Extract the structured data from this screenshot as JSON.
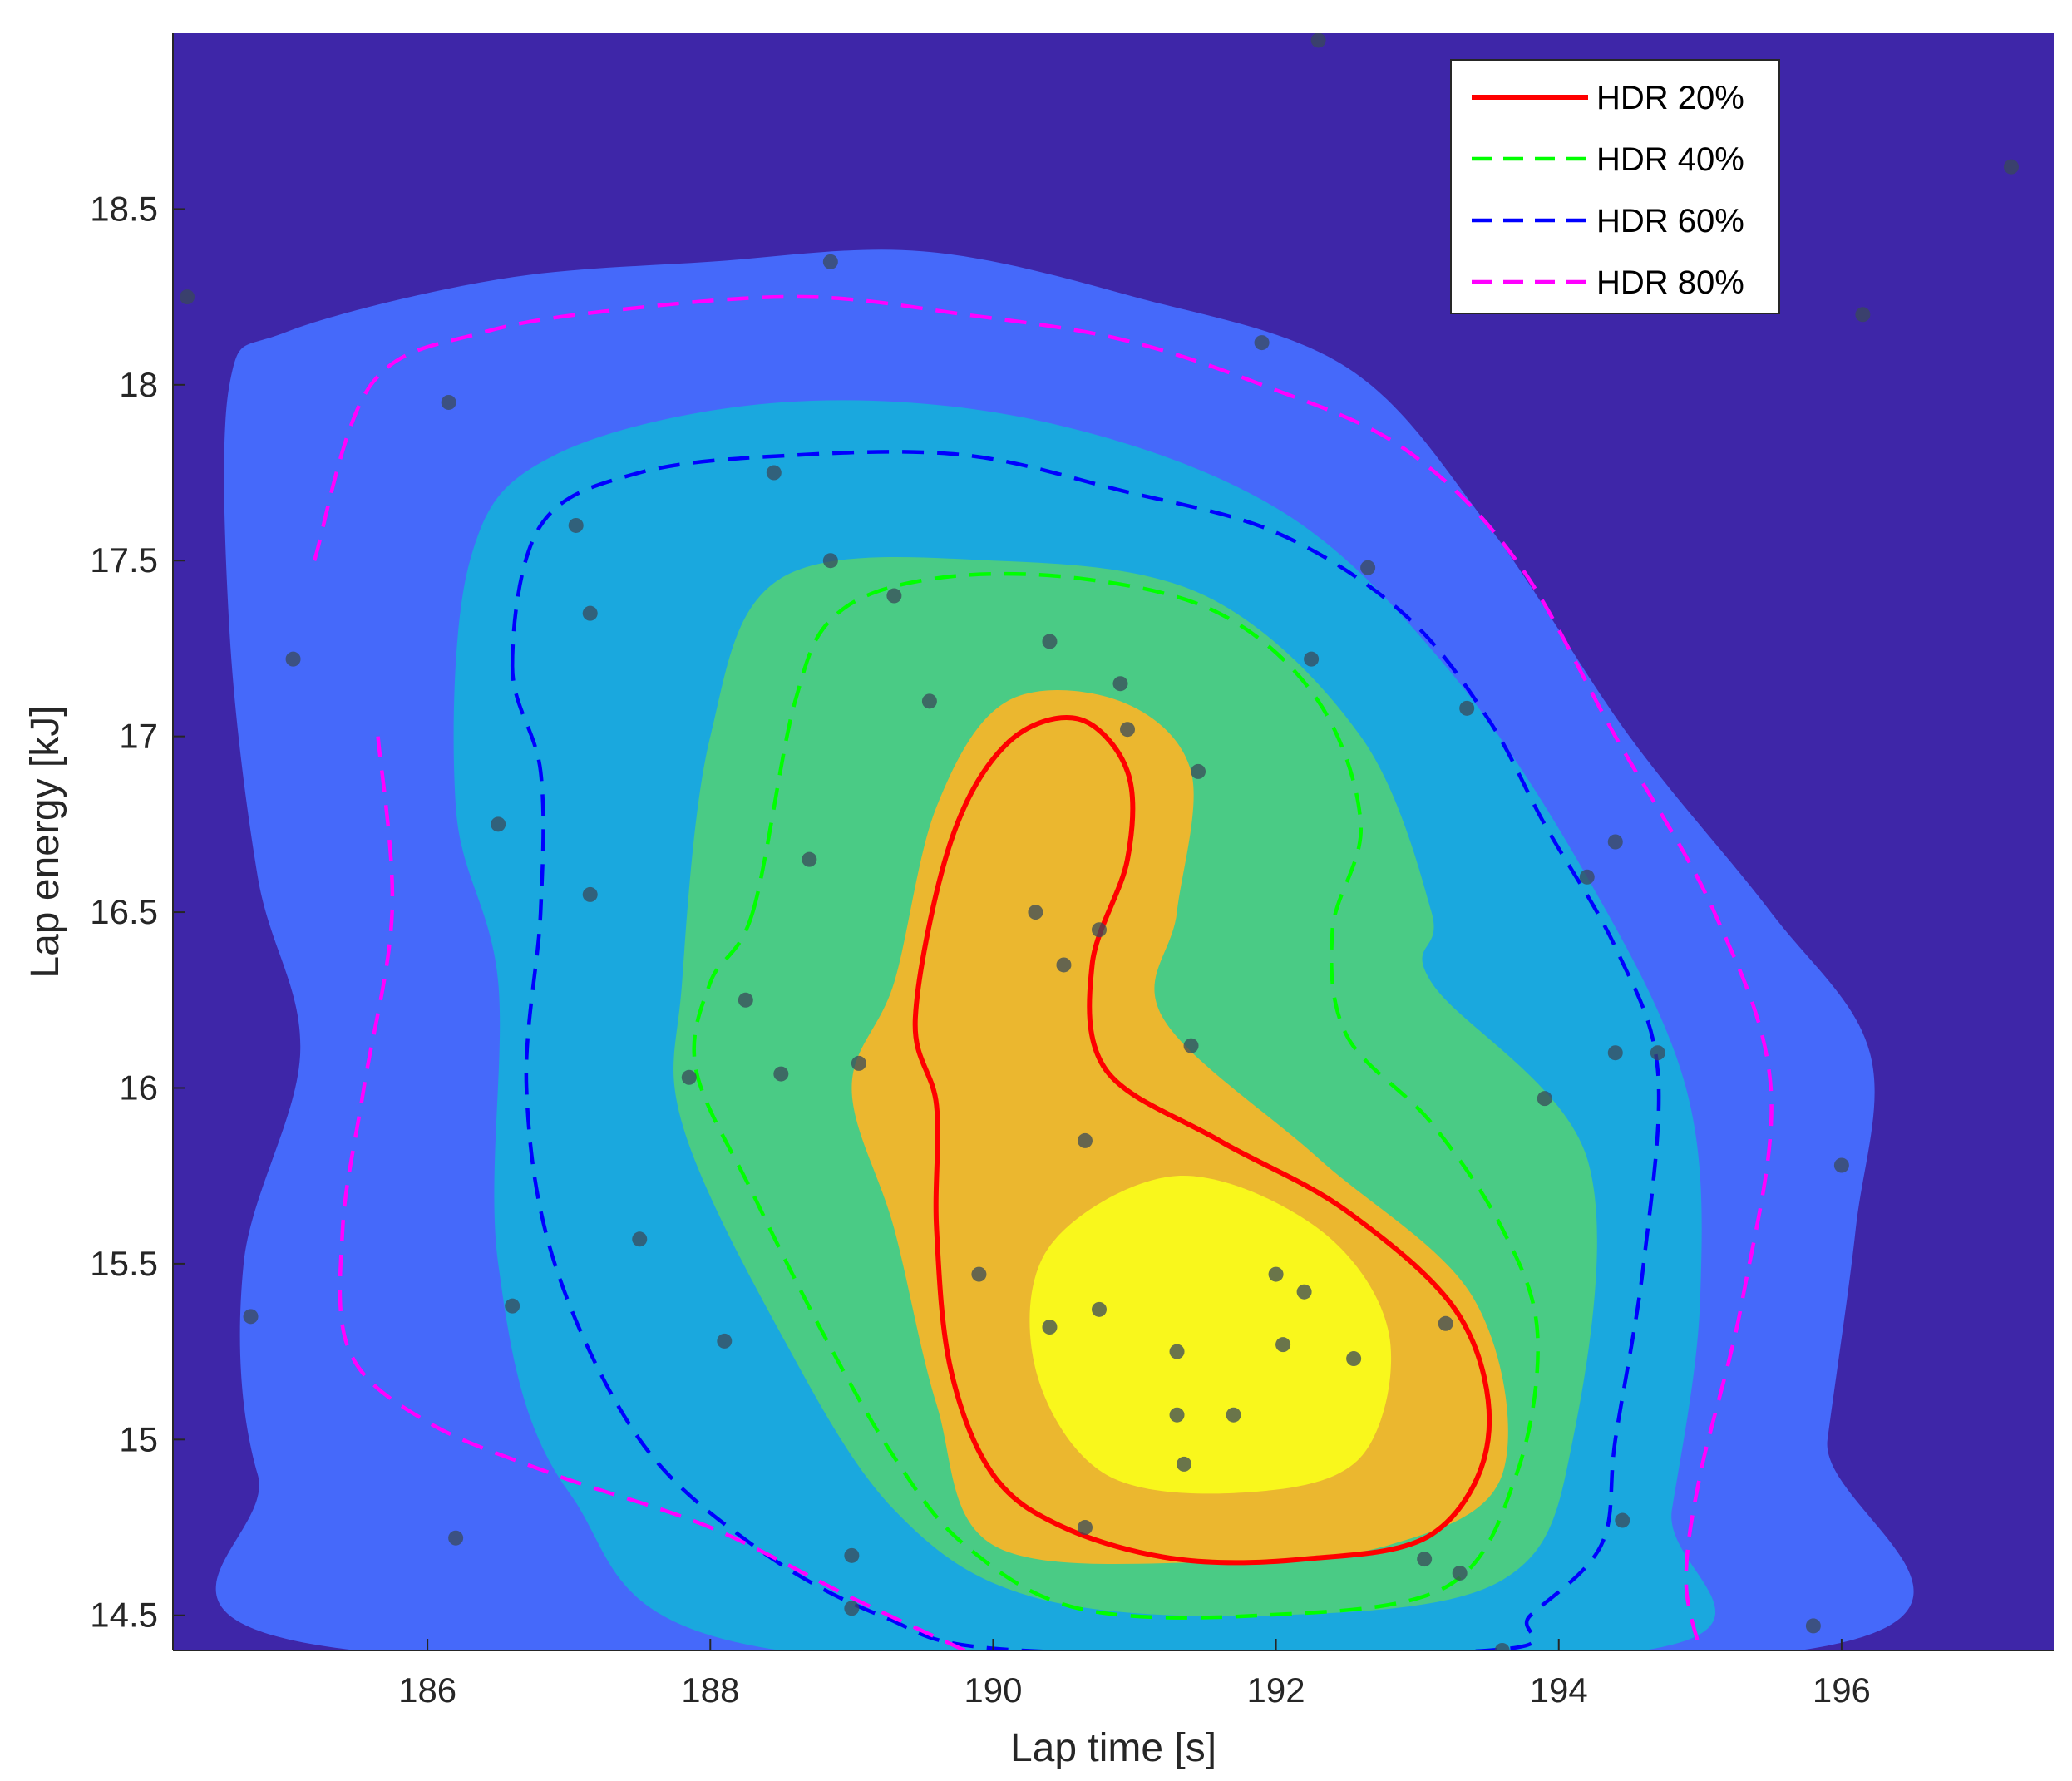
{
  "chart_data": {
    "type": "contour",
    "xlabel": "Lap time [s]",
    "ylabel": "Lap energy [kJ]",
    "xlim": [
      184.2,
      197.5
    ],
    "ylim": [
      14.4,
      19.0
    ],
    "xticks": [
      186,
      188,
      190,
      192,
      194,
      196
    ],
    "yticks": [
      14.5,
      15,
      15.5,
      16,
      16.5,
      17,
      17.5,
      18,
      18.5
    ],
    "grid": false,
    "legend_position": "top-right",
    "colors": {
      "background_region": "#3e26a8",
      "band_80": "#4569fa",
      "band_60": "#1aa8de",
      "band_40": "#4acb85",
      "band_20": "#ebb72f",
      "peak": "#f9f71c",
      "scatter": "#3a4a5a"
    },
    "filled_regions": [
      {
        "color_key": "band_80",
        "points": [
          [
            184.6,
            18.0
          ],
          [
            185.0,
            18.15
          ],
          [
            186.5,
            18.3
          ],
          [
            188.0,
            18.35
          ],
          [
            189.5,
            18.38
          ],
          [
            191.0,
            18.25
          ],
          [
            192.5,
            18.05
          ],
          [
            193.5,
            17.6
          ],
          [
            194.5,
            17.0
          ],
          [
            195.5,
            16.5
          ],
          [
            196.2,
            16.1
          ],
          [
            196.1,
            15.6
          ],
          [
            195.9,
            15.0
          ],
          [
            195.7,
            14.4
          ],
          [
            185.5,
            14.4
          ],
          [
            184.8,
            14.9
          ],
          [
            184.7,
            15.5
          ],
          [
            185.1,
            16.1
          ],
          [
            184.8,
            16.6
          ],
          [
            184.6,
            17.3
          ]
        ]
      },
      {
        "color_key": "band_60",
        "points": [
          [
            186.3,
            17.5
          ],
          [
            186.9,
            17.8
          ],
          [
            188.5,
            17.95
          ],
          [
            190.3,
            17.9
          ],
          [
            192.0,
            17.65
          ],
          [
            193.2,
            17.2
          ],
          [
            194.2,
            16.6
          ],
          [
            194.9,
            16.0
          ],
          [
            195.0,
            15.4
          ],
          [
            194.8,
            14.8
          ],
          [
            194.6,
            14.4
          ],
          [
            188.5,
            14.4
          ],
          [
            187.0,
            14.85
          ],
          [
            186.5,
            15.5
          ],
          [
            186.5,
            16.3
          ],
          [
            186.2,
            16.8
          ]
        ]
      },
      {
        "color_key": "band_40",
        "points": [
          [
            188.0,
            17.0
          ],
          [
            188.5,
            17.45
          ],
          [
            190.0,
            17.5
          ],
          [
            191.5,
            17.4
          ],
          [
            192.6,
            17.0
          ],
          [
            193.1,
            16.5
          ],
          [
            193.1,
            16.3
          ],
          [
            194.2,
            15.8
          ],
          [
            194.1,
            15.0
          ],
          [
            193.6,
            14.6
          ],
          [
            192.0,
            14.5
          ],
          [
            190.3,
            14.55
          ],
          [
            189.3,
            14.8
          ],
          [
            188.5,
            15.3
          ],
          [
            187.8,
            15.9
          ],
          [
            187.8,
            16.3
          ]
        ]
      },
      {
        "color_key": "band_20",
        "points": [
          [
            189.3,
            16.3
          ],
          [
            189.6,
            16.8
          ],
          [
            190.1,
            17.1
          ],
          [
            190.9,
            17.1
          ],
          [
            191.4,
            16.9
          ],
          [
            191.3,
            16.5
          ],
          [
            191.2,
            16.2
          ],
          [
            192.3,
            15.8
          ],
          [
            193.4,
            15.4
          ],
          [
            193.6,
            14.9
          ],
          [
            192.8,
            14.7
          ],
          [
            191.5,
            14.65
          ],
          [
            190.0,
            14.7
          ],
          [
            189.6,
            15.1
          ],
          [
            189.3,
            15.6
          ],
          [
            189.0,
            16.0
          ]
        ]
      },
      {
        "color_key": "peak",
        "points": [
          [
            190.4,
            15.55
          ],
          [
            191.3,
            15.75
          ],
          [
            192.3,
            15.6
          ],
          [
            192.8,
            15.3
          ],
          [
            192.6,
            14.95
          ],
          [
            191.8,
            14.85
          ],
          [
            190.8,
            14.9
          ],
          [
            190.3,
            15.2
          ]
        ]
      }
    ],
    "series": [
      {
        "name": "HDR 20%",
        "color": "#ff0000",
        "style": "solid",
        "points": [
          [
            189.45,
            16.2
          ],
          [
            189.7,
            16.7
          ],
          [
            190.1,
            16.98
          ],
          [
            190.6,
            17.05
          ],
          [
            190.95,
            16.9
          ],
          [
            190.95,
            16.65
          ],
          [
            190.7,
            16.35
          ],
          [
            190.8,
            16.05
          ],
          [
            191.6,
            15.85
          ],
          [
            192.5,
            15.65
          ],
          [
            193.3,
            15.35
          ],
          [
            193.5,
            15.0
          ],
          [
            193.1,
            14.73
          ],
          [
            192.2,
            14.66
          ],
          [
            191.3,
            14.66
          ],
          [
            190.5,
            14.75
          ],
          [
            190.0,
            14.9
          ],
          [
            189.7,
            15.2
          ],
          [
            189.6,
            15.6
          ],
          [
            189.6,
            15.95
          ]
        ]
      },
      {
        "name": "HDR 40%",
        "color": "#00ff00",
        "style": "dashed",
        "points": [
          [
            188.3,
            16.5
          ],
          [
            188.6,
            17.1
          ],
          [
            188.9,
            17.35
          ],
          [
            189.6,
            17.45
          ],
          [
            190.6,
            17.45
          ],
          [
            191.6,
            17.35
          ],
          [
            192.3,
            17.1
          ],
          [
            192.6,
            16.75
          ],
          [
            192.4,
            16.45
          ],
          [
            192.5,
            16.15
          ],
          [
            193.1,
            15.9
          ],
          [
            193.6,
            15.6
          ],
          [
            193.85,
            15.3
          ],
          [
            193.7,
            14.9
          ],
          [
            193.2,
            14.58
          ],
          [
            191.9,
            14.5
          ],
          [
            190.6,
            14.52
          ],
          [
            189.8,
            14.7
          ],
          [
            189.3,
            14.95
          ],
          [
            188.8,
            15.3
          ],
          [
            188.3,
            15.7
          ],
          [
            187.9,
            16.05
          ],
          [
            188.0,
            16.3
          ]
        ]
      },
      {
        "name": "HDR 60%",
        "color": "#0000ff",
        "style": "dashed",
        "points": [
          [
            186.6,
            17.2
          ],
          [
            186.8,
            17.6
          ],
          [
            187.5,
            17.75
          ],
          [
            188.6,
            17.8
          ],
          [
            189.8,
            17.8
          ],
          [
            190.9,
            17.7
          ],
          [
            192.0,
            17.58
          ],
          [
            192.9,
            17.35
          ],
          [
            193.5,
            17.05
          ],
          [
            193.9,
            16.75
          ],
          [
            194.4,
            16.4
          ],
          [
            194.7,
            16.05
          ],
          [
            194.6,
            15.5
          ],
          [
            194.4,
            15.0
          ],
          [
            194.3,
            14.7
          ],
          [
            193.8,
            14.5
          ],
          [
            193.5,
            14.4
          ],
          [
            190.2,
            14.4
          ],
          [
            189.2,
            14.5
          ],
          [
            188.3,
            14.7
          ],
          [
            187.5,
            15.0
          ],
          [
            186.9,
            15.5
          ],
          [
            186.7,
            16.0
          ],
          [
            186.8,
            16.5
          ],
          [
            186.8,
            16.9
          ]
        ]
      },
      {
        "name": "HDR 80%",
        "color": "#ff00ff",
        "style": "dashed",
        "points": [
          [
            185.2,
            17.5
          ],
          [
            185.6,
            18.0
          ],
          [
            186.4,
            18.15
          ],
          [
            187.5,
            18.22
          ],
          [
            188.7,
            18.25
          ],
          [
            189.8,
            18.2
          ],
          [
            190.9,
            18.13
          ],
          [
            191.9,
            18.0
          ],
          [
            192.9,
            17.82
          ],
          [
            193.7,
            17.5
          ],
          [
            194.4,
            17.0
          ],
          [
            195.1,
            16.5
          ],
          [
            195.5,
            16.0
          ],
          [
            195.3,
            15.4
          ],
          [
            195.0,
            14.9
          ],
          [
            194.9,
            14.6
          ],
          [
            195.0,
            14.4
          ]
        ]
      },
      {
        "name": "HDR 80%",
        "color": "#ff00ff",
        "style": "dashed",
        "points": [
          [
            189.8,
            14.4
          ],
          [
            189.0,
            14.55
          ],
          [
            188.0,
            14.75
          ],
          [
            186.9,
            14.9
          ],
          [
            186.0,
            15.05
          ],
          [
            185.45,
            15.25
          ],
          [
            185.4,
            15.6
          ],
          [
            185.55,
            16.0
          ],
          [
            185.75,
            16.5
          ],
          [
            185.65,
            17.0
          ]
        ]
      }
    ],
    "scatter": [
      [
        186.15,
        17.95
      ],
      [
        188.85,
        18.35
      ],
      [
        191.9,
        18.12
      ],
      [
        192.3,
        18.98
      ],
      [
        184.3,
        18.25
      ],
      [
        196.15,
        18.2
      ],
      [
        197.2,
        18.62
      ],
      [
        188.45,
        17.75
      ],
      [
        187.05,
        17.6
      ],
      [
        188.85,
        17.5
      ],
      [
        187.15,
        17.35
      ],
      [
        189.3,
        17.4
      ],
      [
        185.05,
        17.22
      ],
      [
        190.4,
        17.27
      ],
      [
        192.25,
        17.22
      ],
      [
        192.65,
        17.48
      ],
      [
        189.55,
        17.1
      ],
      [
        190.9,
        17.15
      ],
      [
        190.95,
        17.02
      ],
      [
        193.35,
        17.08
      ],
      [
        191.45,
        16.9
      ],
      [
        186.5,
        16.75
      ],
      [
        188.7,
        16.65
      ],
      [
        187.15,
        16.55
      ],
      [
        190.3,
        16.5
      ],
      [
        190.75,
        16.45
      ],
      [
        194.4,
        16.7
      ],
      [
        194.2,
        16.6
      ],
      [
        190.5,
        16.35
      ],
      [
        188.25,
        16.25
      ],
      [
        191.4,
        16.12
      ],
      [
        187.85,
        16.03
      ],
      [
        188.5,
        16.04
      ],
      [
        189.05,
        16.07
      ],
      [
        194.4,
        16.1
      ],
      [
        194.7,
        16.1
      ],
      [
        193.9,
        15.97
      ],
      [
        190.65,
        15.85
      ],
      [
        196.0,
        15.78
      ],
      [
        187.5,
        15.57
      ],
      [
        189.9,
        15.47
      ],
      [
        192.0,
        15.47
      ],
      [
        192.2,
        15.42
      ],
      [
        186.6,
        15.38
      ],
      [
        190.75,
        15.37
      ],
      [
        184.75,
        15.35
      ],
      [
        190.4,
        15.32
      ],
      [
        193.2,
        15.33
      ],
      [
        188.1,
        15.28
      ],
      [
        191.3,
        15.25
      ],
      [
        192.05,
        15.27
      ],
      [
        192.55,
        15.23
      ],
      [
        191.3,
        15.07
      ],
      [
        191.7,
        15.07
      ],
      [
        191.35,
        14.93
      ],
      [
        190.65,
        14.75
      ],
      [
        194.45,
        14.77
      ],
      [
        186.2,
        14.72
      ],
      [
        189.0,
        14.67
      ],
      [
        193.05,
        14.66
      ],
      [
        193.3,
        14.62
      ],
      [
        189.0,
        14.52
      ],
      [
        195.8,
        14.47
      ],
      [
        193.6,
        14.4
      ]
    ]
  }
}
